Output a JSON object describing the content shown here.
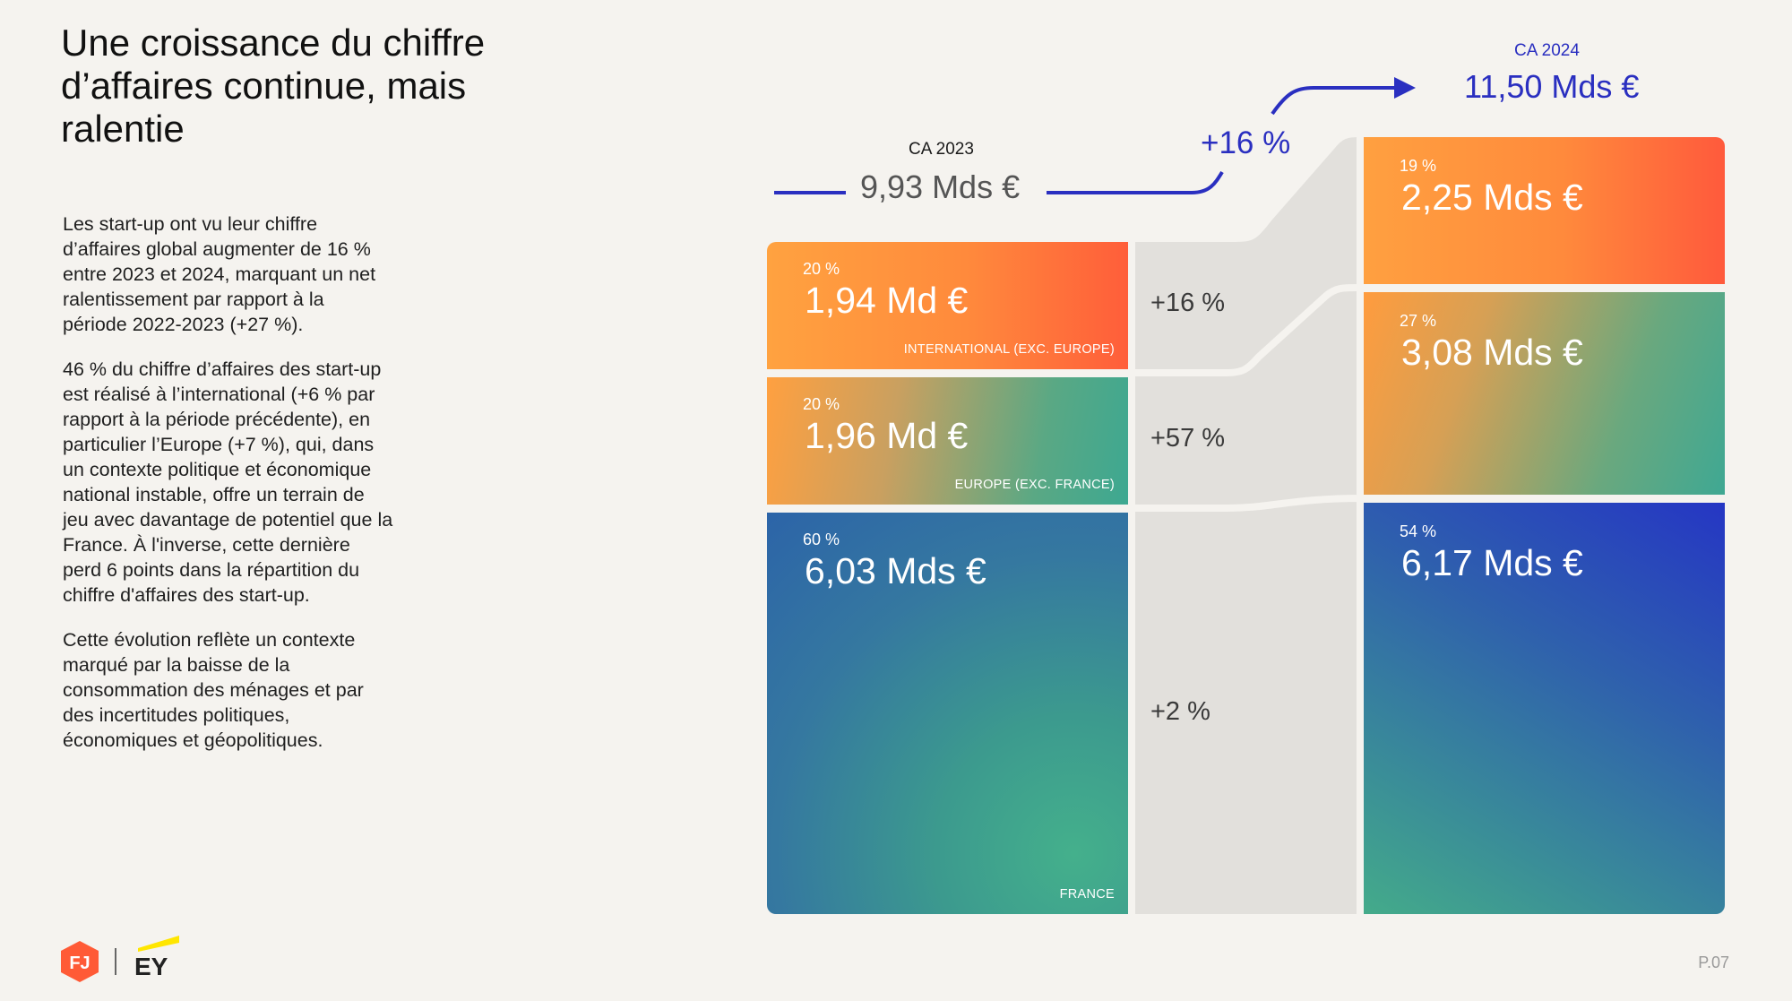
{
  "title": "Une croissance du chiffre\nd’affaires continue, mais\nralentie",
  "paragraphs": [
    "Les start-up ont vu leur chiffre\nd’affaires global augmenter de 16 %\nentre 2023 et 2024, marquant un net\nralentissement par rapport à la\npériode 2022-2023 (+27 %).",
    "46 % du chiffre d’affaires des start-up\nest réalisé à l’international (+6 % par\nrapport à la période précédente), en\nparticulier l’Europe (+7 %), qui, dans\nun contexte politique et économique\nnational instable, offre un terrain de\njeu avec davantage de potentiel que la\nFrance. À l'inverse, cette dernière\nperd 6 points dans la répartition du\nchiffre d'affaires des start-up.",
    "Cette évolution reflète un contexte\nmarqué par la baisse de la\nconsommation des ménages et par\ndes incertitudes politiques,\néconomiques et géopolitiques."
  ],
  "chart": {
    "ca2023": {
      "label": "CA 2023",
      "value": "9,93 Mds €"
    },
    "ca2024": {
      "label": "CA 2024",
      "value": "11,50 Mds €"
    },
    "total_growth": "+16 %",
    "blocks_2023": [
      {
        "pct": "20 %",
        "value": "1,94 Md €",
        "name": "INTERNATIONAL (EXC. EUROPE)"
      },
      {
        "pct": "20 %",
        "value": "1,96 Md €",
        "name": "EUROPE (EXC. FRANCE)"
      },
      {
        "pct": "60 %",
        "value": "6,03 Mds €",
        "name": "FRANCE"
      }
    ],
    "growth": [
      "+16 %",
      "+57 %",
      "+2 %"
    ],
    "blocks_2024": [
      {
        "pct": "19 %",
        "value": "2,25 Mds €"
      },
      {
        "pct": "27 %",
        "value": "3,08 Mds €"
      },
      {
        "pct": "54 %",
        "value": "6,17 Mds €"
      }
    ],
    "colors": {
      "accent": "#2a2fc0",
      "orange": "#ff6a3c",
      "green": "#3fa893",
      "blue": "#2c4fb0",
      "flow": "#e2e0dc"
    }
  },
  "footer": {
    "brand1": "FJ",
    "brand2": "EY",
    "page": "P.07"
  }
}
